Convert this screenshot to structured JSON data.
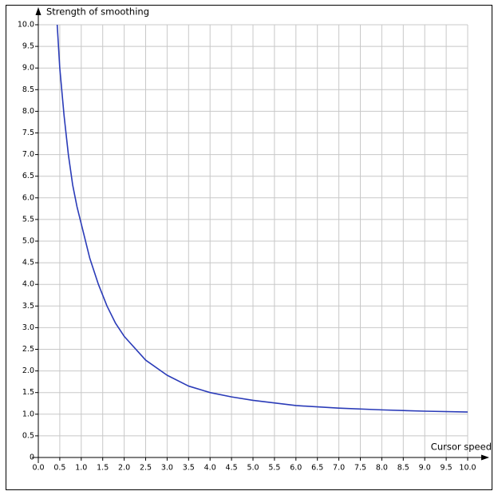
{
  "chart_data": {
    "type": "line",
    "x_label": "Cursor speed",
    "y_label": "Strength of smoothing",
    "x": [
      0.44,
      0.5,
      0.6,
      0.7,
      0.8,
      0.9,
      1.0,
      1.2,
      1.4,
      1.6,
      1.8,
      2.0,
      2.5,
      3.0,
      3.5,
      4.0,
      4.5,
      5.0,
      6.0,
      7.0,
      8.0,
      9.0,
      10.0
    ],
    "series": [
      {
        "color": "#2a3bb8",
        "values": [
          10,
          9.0,
          7.9,
          7.0,
          6.3,
          5.8,
          5.4,
          4.6,
          4.0,
          3.5,
          3.1,
          2.8,
          2.25,
          1.9,
          1.65,
          1.5,
          1.4,
          1.32,
          1.2,
          1.14,
          1.1,
          1.07,
          1.05
        ]
      }
    ],
    "xlim": [
      0,
      10
    ],
    "ylim": [
      0,
      10
    ],
    "xticks": [
      {
        "value": 0,
        "label": "0.0"
      },
      0.5,
      {
        "value": 1,
        "label": "1.0"
      },
      1.5,
      {
        "value": 2,
        "label": "2.0"
      },
      2.5,
      {
        "value": 3,
        "label": "3.0"
      },
      3.5,
      {
        "value": 4,
        "label": "4.0"
      },
      4.5,
      {
        "value": 5,
        "label": "5.0"
      },
      5.5,
      {
        "value": 6,
        "label": "6.0"
      },
      6.5,
      {
        "value": 7,
        "label": "7.0"
      },
      7.5,
      {
        "value": 8,
        "label": "8.0"
      },
      8.5,
      {
        "value": 9,
        "label": "9.0"
      },
      9.5,
      {
        "value": 10,
        "label": "10.0"
      }
    ],
    "yticks": [
      0,
      0.5,
      {
        "value": 1,
        "label": "1.0"
      },
      1.5,
      {
        "value": 2,
        "label": "2.0"
      },
      2.5,
      {
        "value": 3,
        "label": "3.0"
      },
      3.5,
      {
        "value": 4,
        "label": "4.0"
      },
      4.5,
      {
        "value": 5,
        "label": "5.0"
      },
      5.5,
      {
        "value": 6,
        "label": "6.0"
      },
      6.5,
      {
        "value": 7,
        "label": "7.0"
      },
      7.5,
      {
        "value": 8,
        "label": "8.0"
      },
      8.5,
      {
        "value": 9,
        "label": "9.0"
      },
      9.5,
      {
        "value": 10,
        "label": "10.0"
      }
    ],
    "grid": true
  }
}
